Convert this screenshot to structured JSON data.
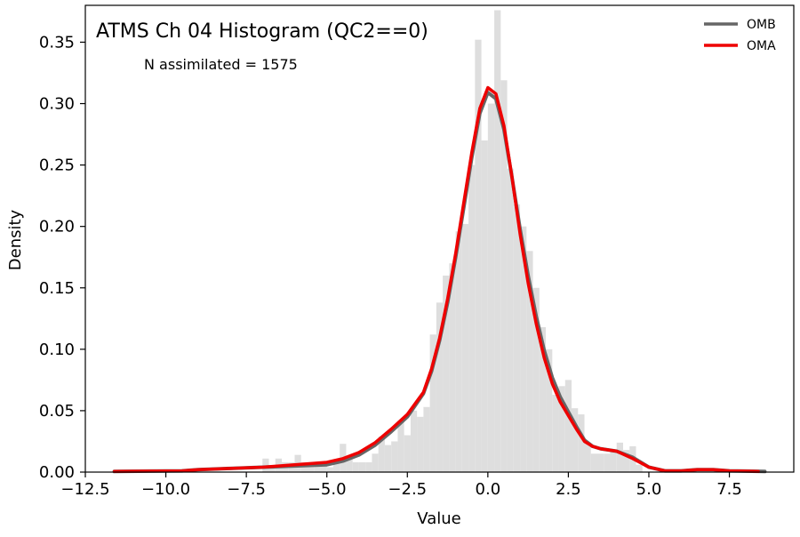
{
  "chart_data": {
    "type": "histogram",
    "title": "ATMS Ch 04 Histogram (QC2==0)",
    "annotation": "N assimilated = 1575",
    "xlabel": "Value",
    "ylabel": "Density",
    "xlim": [
      -12.5,
      9.5
    ],
    "ylim": [
      0,
      0.38
    ],
    "x_ticks": [
      -12.5,
      -10.0,
      -7.5,
      -5.0,
      -2.5,
      0.0,
      2.5,
      5.0,
      7.5
    ],
    "x_tick_labels": [
      "−12.5",
      "−10.0",
      "−7.5",
      "−5.0",
      "−2.5",
      "0.0",
      "2.5",
      "5.0",
      "7.5"
    ],
    "y_ticks": [
      0.0,
      0.05,
      0.1,
      0.15,
      0.2,
      0.25,
      0.3,
      0.35
    ],
    "y_tick_labels": [
      "0.00",
      "0.05",
      "0.10",
      "0.15",
      "0.20",
      "0.25",
      "0.30",
      "0.35"
    ],
    "legend_position": "top-right",
    "grid": false,
    "histogram": {
      "color": "#dedede",
      "bins": [
        {
          "x0": -7.0,
          "x1": -6.8,
          "density": 0.011
        },
        {
          "x0": -6.8,
          "x1": -6.6,
          "density": 0.004
        },
        {
          "x0": -6.6,
          "x1": -6.4,
          "density": 0.011
        },
        {
          "x0": -6.4,
          "x1": -6.2,
          "density": 0.008
        },
        {
          "x0": -6.2,
          "x1": -6.0,
          "density": 0.008
        },
        {
          "x0": -6.0,
          "x1": -5.8,
          "density": 0.014
        },
        {
          "x0": -5.8,
          "x1": -5.6,
          "density": 0.008
        },
        {
          "x0": -5.6,
          "x1": -5.4,
          "density": 0.008
        },
        {
          "x0": -5.4,
          "x1": -5.2,
          "density": 0.008
        },
        {
          "x0": -5.2,
          "x1": -5.0,
          "density": 0.008
        },
        {
          "x0": -5.0,
          "x1": -4.8,
          "density": 0.004
        },
        {
          "x0": -4.8,
          "x1": -4.6,
          "density": 0.009
        },
        {
          "x0": -4.6,
          "x1": -4.4,
          "density": 0.023
        },
        {
          "x0": -4.4,
          "x1": -4.2,
          "density": 0.011
        },
        {
          "x0": -4.2,
          "x1": -4.0,
          "density": 0.008
        },
        {
          "x0": -4.0,
          "x1": -3.8,
          "density": 0.008
        },
        {
          "x0": -3.8,
          "x1": -3.6,
          "density": 0.008
        },
        {
          "x0": -3.6,
          "x1": -3.4,
          "density": 0.015
        },
        {
          "x0": -3.4,
          "x1": -3.2,
          "density": 0.029
        },
        {
          "x0": -3.2,
          "x1": -3.0,
          "density": 0.022
        },
        {
          "x0": -3.0,
          "x1": -2.8,
          "density": 0.025
        },
        {
          "x0": -2.8,
          "x1": -2.6,
          "density": 0.042
        },
        {
          "x0": -2.6,
          "x1": -2.4,
          "density": 0.03
        },
        {
          "x0": -2.4,
          "x1": -2.2,
          "density": 0.05
        },
        {
          "x0": -2.2,
          "x1": -2.0,
          "density": 0.045
        },
        {
          "x0": -2.0,
          "x1": -1.8,
          "density": 0.053
        },
        {
          "x0": -1.8,
          "x1": -1.6,
          "density": 0.112
        },
        {
          "x0": -1.6,
          "x1": -1.4,
          "density": 0.138
        },
        {
          "x0": -1.4,
          "x1": -1.2,
          "density": 0.16
        },
        {
          "x0": -1.2,
          "x1": -1.0,
          "density": 0.17
        },
        {
          "x0": -1.0,
          "x1": -0.8,
          "density": 0.196
        },
        {
          "x0": -0.8,
          "x1": -0.6,
          "density": 0.202
        },
        {
          "x0": -0.6,
          "x1": -0.4,
          "density": 0.25
        },
        {
          "x0": -0.4,
          "x1": -0.2,
          "density": 0.352
        },
        {
          "x0": -0.2,
          "x1": 0.0,
          "density": 0.27
        },
        {
          "x0": 0.0,
          "x1": 0.2,
          "density": 0.3
        },
        {
          "x0": 0.2,
          "x1": 0.4,
          "density": 0.376
        },
        {
          "x0": 0.4,
          "x1": 0.6,
          "density": 0.319
        },
        {
          "x0": 0.6,
          "x1": 0.8,
          "density": 0.247
        },
        {
          "x0": 0.8,
          "x1": 1.0,
          "density": 0.218
        },
        {
          "x0": 1.0,
          "x1": 1.2,
          "density": 0.2
        },
        {
          "x0": 1.2,
          "x1": 1.4,
          "density": 0.18
        },
        {
          "x0": 1.4,
          "x1": 1.6,
          "density": 0.15
        },
        {
          "x0": 1.6,
          "x1": 1.8,
          "density": 0.118
        },
        {
          "x0": 1.8,
          "x1": 2.0,
          "density": 0.1
        },
        {
          "x0": 2.0,
          "x1": 2.2,
          "density": 0.063
        },
        {
          "x0": 2.2,
          "x1": 2.4,
          "density": 0.07
        },
        {
          "x0": 2.4,
          "x1": 2.6,
          "density": 0.075
        },
        {
          "x0": 2.6,
          "x1": 2.8,
          "density": 0.052
        },
        {
          "x0": 2.8,
          "x1": 3.0,
          "density": 0.047
        },
        {
          "x0": 3.0,
          "x1": 3.2,
          "density": 0.024
        },
        {
          "x0": 3.2,
          "x1": 3.4,
          "density": 0.015
        },
        {
          "x0": 3.4,
          "x1": 3.6,
          "density": 0.015
        },
        {
          "x0": 3.6,
          "x1": 3.8,
          "density": 0.015
        },
        {
          "x0": 3.8,
          "x1": 4.0,
          "density": 0.018
        },
        {
          "x0": 4.0,
          "x1": 4.2,
          "density": 0.024
        },
        {
          "x0": 4.2,
          "x1": 4.4,
          "density": 0.018
        },
        {
          "x0": 4.4,
          "x1": 4.6,
          "density": 0.021
        },
        {
          "x0": 4.6,
          "x1": 4.8,
          "density": 0.006
        }
      ]
    },
    "series": [
      {
        "name": "OMB",
        "type": "line",
        "color": "#666666",
        "x": [
          -11.6,
          -10.5,
          -9.5,
          -9.0,
          -8.0,
          -7.0,
          -6.0,
          -5.0,
          -4.5,
          -4.0,
          -3.5,
          -3.0,
          -2.5,
          -2.0,
          -1.75,
          -1.5,
          -1.25,
          -1.0,
          -0.75,
          -0.5,
          -0.25,
          0.0,
          0.25,
          0.5,
          0.75,
          1.0,
          1.25,
          1.5,
          1.75,
          2.0,
          2.25,
          2.5,
          2.75,
          3.0,
          3.25,
          3.5,
          4.0,
          4.5,
          5.0,
          5.5,
          6.0,
          6.5,
          7.0,
          7.5,
          8.0,
          8.6
        ],
        "y": [
          0.0005,
          0.0008,
          0.001,
          0.002,
          0.003,
          0.004,
          0.005,
          0.006,
          0.009,
          0.014,
          0.022,
          0.033,
          0.045,
          0.064,
          0.082,
          0.107,
          0.138,
          0.175,
          0.215,
          0.256,
          0.292,
          0.309,
          0.304,
          0.279,
          0.24,
          0.198,
          0.16,
          0.127,
          0.099,
          0.077,
          0.061,
          0.049,
          0.037,
          0.026,
          0.021,
          0.019,
          0.017,
          0.012,
          0.004,
          0.001,
          0.001,
          0.002,
          0.002,
          0.001,
          0.0008,
          0.0005
        ]
      },
      {
        "name": "OMA",
        "type": "line",
        "color": "#ee0000",
        "x": [
          -11.6,
          -10.5,
          -9.5,
          -9.0,
          -8.0,
          -7.0,
          -6.0,
          -5.0,
          -4.5,
          -4.0,
          -3.5,
          -3.0,
          -2.5,
          -2.0,
          -1.75,
          -1.5,
          -1.25,
          -1.0,
          -0.75,
          -0.5,
          -0.25,
          0.0,
          0.25,
          0.5,
          0.75,
          1.0,
          1.25,
          1.5,
          1.75,
          2.0,
          2.25,
          2.5,
          2.75,
          3.0,
          3.25,
          3.5,
          4.0,
          4.5,
          5.0,
          5.5,
          6.0,
          6.5,
          7.0,
          7.5,
          8.0,
          8.4
        ],
        "y": [
          0.0005,
          0.0008,
          0.001,
          0.002,
          0.003,
          0.004,
          0.006,
          0.008,
          0.011,
          0.016,
          0.024,
          0.035,
          0.047,
          0.065,
          0.084,
          0.109,
          0.141,
          0.178,
          0.219,
          0.26,
          0.296,
          0.313,
          0.308,
          0.282,
          0.24,
          0.194,
          0.154,
          0.121,
          0.093,
          0.072,
          0.057,
          0.046,
          0.035,
          0.025,
          0.021,
          0.019,
          0.017,
          0.011,
          0.004,
          0.001,
          0.001,
          0.002,
          0.002,
          0.001,
          0.0008,
          0.0005
        ]
      }
    ]
  }
}
